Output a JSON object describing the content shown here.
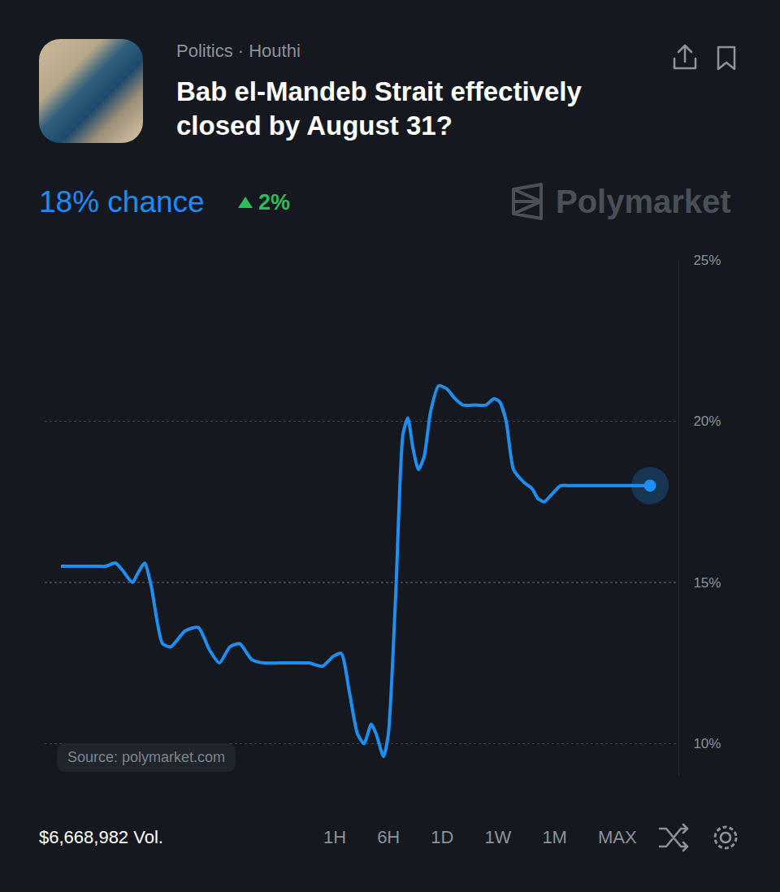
{
  "header": {
    "category": "Politics · Houthi",
    "title": "Bab el-Mandeb Strait effectively closed by August 31?",
    "chance": "18% chance",
    "change": "2%",
    "brand": "Polymarket"
  },
  "chart_data": {
    "type": "line",
    "color": "#1f8ef1",
    "line_style": "spline",
    "marker": "end_dot",
    "grid": true,
    "tick_labels": "y",
    "source": "Source: polymarket.com",
    "x": [
      0,
      45,
      55,
      67,
      75,
      88,
      95,
      103,
      111,
      125,
      135,
      153,
      169,
      183,
      195,
      208,
      220,
      235,
      250,
      270,
      285,
      305,
      322,
      335,
      345,
      355,
      365,
      373,
      382,
      388,
      397,
      403,
      412,
      421,
      427,
      433,
      440,
      447,
      455,
      465,
      475,
      485,
      495,
      510,
      523,
      533,
      540,
      548,
      557,
      570,
      580,
      587,
      595,
      603,
      615,
      627,
      645,
      685,
      725
    ],
    "values": [
      15.5,
      15.5,
      15.5,
      15.6,
      15.4,
      15.0,
      15.3,
      15.6,
      14.9,
      13.1,
      13.0,
      13.5,
      13.6,
      12.9,
      12.5,
      13.0,
      13.1,
      12.6,
      12.5,
      12.5,
      12.5,
      12.5,
      12.4,
      12.7,
      12.8,
      11.6,
      10.3,
      10.0,
      10.6,
      10.3,
      9.6,
      10.3,
      14.6,
      19.6,
      20.1,
      19.2,
      18.5,
      18.9,
      20.3,
      21.1,
      21.0,
      20.7,
      20.5,
      20.5,
      20.5,
      20.7,
      20.6,
      20.0,
      18.5,
      18.1,
      17.9,
      17.6,
      17.5,
      17.7,
      18.0,
      18.0,
      18.0,
      18.0,
      18.0
    ],
    "xlim": [
      -20,
      760
    ],
    "ylim": [
      9,
      25
    ],
    "yticks": [
      {
        "value": 10,
        "label": "10%"
      },
      {
        "value": 15,
        "label": "15%"
      },
      {
        "value": 20,
        "label": "20%"
      },
      {
        "value": 25,
        "label": "25%"
      }
    ]
  },
  "footer": {
    "volume": "$6,668,982 Vol.",
    "ranges": [
      "1H",
      "6H",
      "1D",
      "1W",
      "1M",
      "MAX"
    ]
  }
}
